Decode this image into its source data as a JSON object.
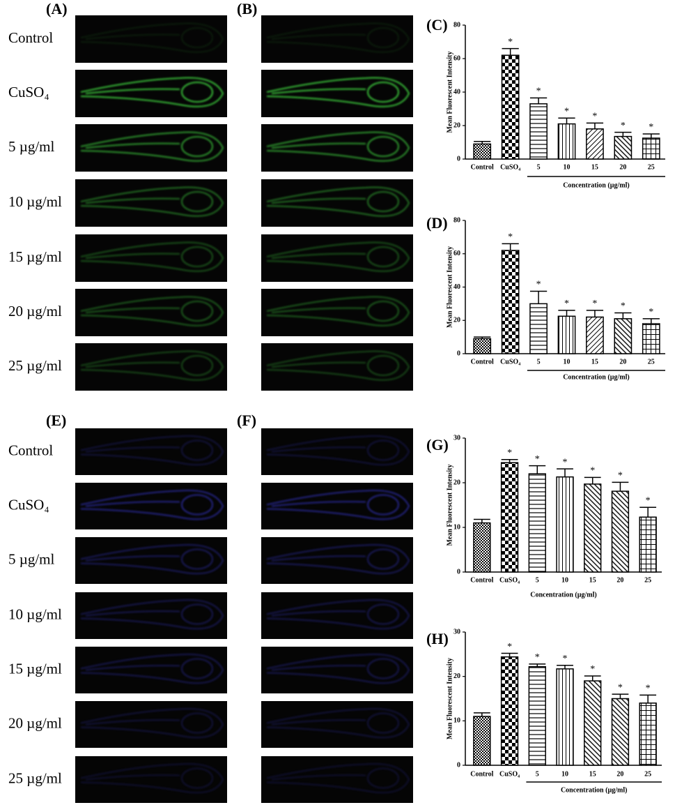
{
  "green_section": {
    "columns": [
      "(A)",
      "(B)"
    ],
    "rows": [
      "Control",
      "CuSO₄",
      "5 µg/ml",
      "10 µg/ml",
      "15 µg/ml",
      "20 µg/ml",
      "25 µg/ml"
    ],
    "color": "#3ecf3e"
  },
  "blue_section": {
    "columns": [
      "(E)",
      "(F)"
    ],
    "rows": [
      "Control",
      "CuSO₄",
      "5 µg/ml",
      "10 µg/ml",
      "15 µg/ml",
      "20 µg/ml",
      "25 µg/ml"
    ],
    "color": "#3a3ae0"
  },
  "chart_data": [
    {
      "type": "bar",
      "label": "(C)",
      "y_label": "Mean Fluorescent Intensity",
      "x_label": "Concentration (µg/ml)",
      "group_line": true,
      "categories": [
        "Control",
        "CuSO₄",
        "5",
        "10",
        "15",
        "20",
        "25"
      ],
      "values": [
        9,
        62,
        33,
        21,
        18,
        13.5,
        12.5
      ],
      "errors": [
        1.5,
        4,
        3.5,
        3.5,
        3.5,
        2.5,
        2.5
      ],
      "significance": [
        null,
        "*",
        "*",
        "*",
        "*",
        "*",
        "*"
      ],
      "patterns": [
        "checker-fine",
        "checker",
        "horizontal",
        "vertical",
        "diagonal",
        "diagonal-back",
        "grid"
      ],
      "ylim": [
        0,
        80
      ],
      "yticks": [
        0,
        20,
        40,
        60,
        80
      ]
    },
    {
      "type": "bar",
      "label": "(D)",
      "y_label": "Mean Fluorescent Intensity",
      "x_label": "Concentration (µg/ml)",
      "group_line": true,
      "categories": [
        "Control",
        "CuSO₄",
        "5",
        "10",
        "15",
        "20",
        "25"
      ],
      "values": [
        9,
        62,
        30,
        22.5,
        22,
        21,
        18
      ],
      "errors": [
        1,
        4,
        7.5,
        3.5,
        4,
        3.5,
        3
      ],
      "significance": [
        null,
        "*",
        "*",
        "*",
        "*",
        "*",
        "*"
      ],
      "patterns": [
        "checker-fine",
        "checker",
        "horizontal",
        "vertical",
        "diagonal",
        "diagonal-back",
        "grid"
      ],
      "ylim": [
        0,
        80
      ],
      "yticks": [
        0,
        20,
        40,
        60,
        80
      ]
    },
    {
      "type": "bar",
      "label": "(G)",
      "y_label": "Mean Fluorescent Intensity",
      "x_label": "Concentration (µg/ml)",
      "group_line": false,
      "categories": [
        "Control",
        "CuSO₄",
        "5",
        "10",
        "15",
        "20",
        "25"
      ],
      "values": [
        11,
        24.5,
        22,
        21.3,
        19.7,
        18.1,
        12.3
      ],
      "errors": [
        0.8,
        0.7,
        1.8,
        1.8,
        1.5,
        2,
        2.2
      ],
      "significance": [
        null,
        "*",
        "*",
        "*",
        "*",
        "*",
        "*"
      ],
      "patterns": [
        "checker-fine",
        "checker",
        "horizontal",
        "vertical",
        "diagonal-back",
        "diagonal-back",
        "grid"
      ],
      "ylim": [
        0,
        30
      ],
      "yticks": [
        0,
        10,
        20,
        30
      ]
    },
    {
      "type": "bar",
      "label": "(H)",
      "y_label": "Mean Fluorescent Intensity",
      "x_label": "Concentration (µg/ml)",
      "group_line": true,
      "categories": [
        "Control",
        "CuSO₄",
        "5",
        "10",
        "15",
        "20",
        "25"
      ],
      "values": [
        11,
        24.4,
        22.2,
        21.7,
        19,
        15,
        14
      ],
      "errors": [
        0.8,
        0.8,
        0.6,
        0.8,
        1.1,
        1,
        1.8
      ],
      "significance": [
        null,
        "*",
        "*",
        "*",
        "*",
        "*",
        "*"
      ],
      "patterns": [
        "checker-fine",
        "checker",
        "horizontal",
        "vertical",
        "diagonal-back",
        "diagonal-back",
        "grid"
      ],
      "ylim": [
        0,
        30
      ],
      "yticks": [
        0,
        10,
        20,
        30
      ]
    }
  ]
}
